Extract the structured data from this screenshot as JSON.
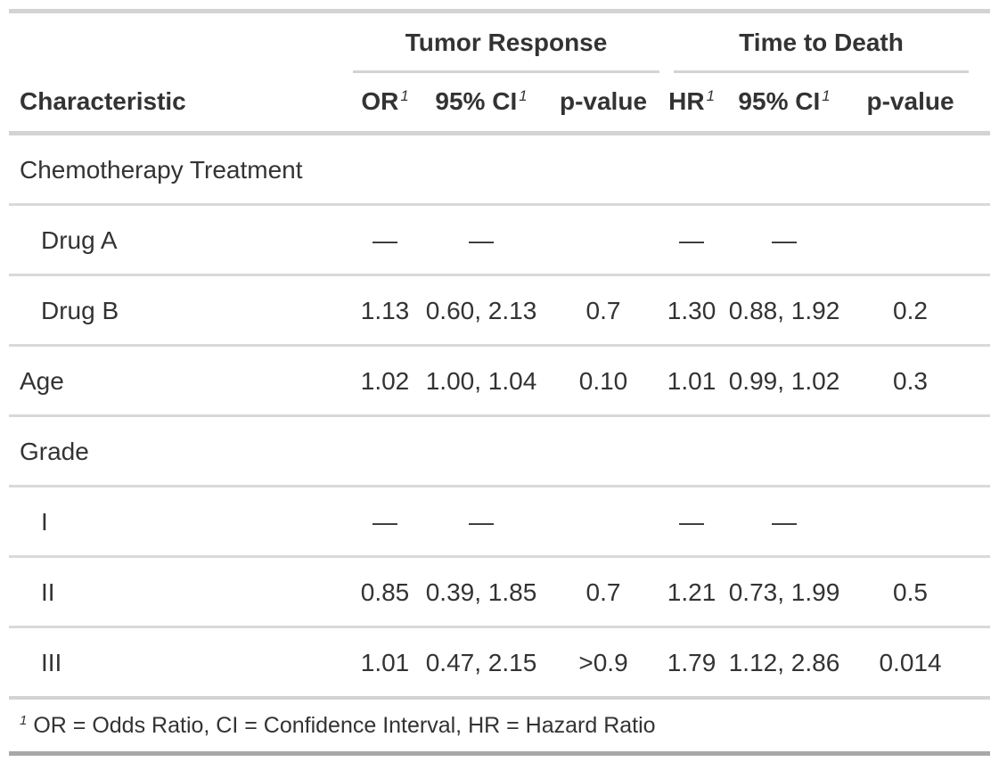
{
  "colors": {
    "text": "#333333",
    "border_light": "#D3D3D3",
    "border_dark": "#A8A8A8",
    "background": "#FFFFFF"
  },
  "chart_data": {
    "type": "table",
    "title": "",
    "spanners": [
      {
        "label": "Tumor Response",
        "covers": [
          "OR",
          "95% CI",
          "p-value"
        ]
      },
      {
        "label": "Time to Death",
        "covers": [
          "HR",
          "95% CI",
          "p-value"
        ]
      }
    ],
    "columns": [
      {
        "label": "Characteristic",
        "footnote_mark": ""
      },
      {
        "label": "OR",
        "footnote_mark": "1"
      },
      {
        "label": "95% CI",
        "footnote_mark": "1"
      },
      {
        "label": "p-value",
        "footnote_mark": ""
      },
      {
        "label": "HR",
        "footnote_mark": "1"
      },
      {
        "label": "95% CI",
        "footnote_mark": "1"
      },
      {
        "label": "p-value",
        "footnote_mark": ""
      }
    ],
    "rows": [
      {
        "label": "Chemotherapy Treatment",
        "indent": false,
        "cells": [
          "",
          "",
          "",
          "",
          "",
          ""
        ]
      },
      {
        "label": "Drug A",
        "indent": true,
        "cells": [
          "—",
          "—",
          "",
          "—",
          "—",
          ""
        ]
      },
      {
        "label": "Drug B",
        "indent": true,
        "cells": [
          "1.13",
          "0.60, 2.13",
          "0.7",
          "1.30",
          "0.88, 1.92",
          "0.2"
        ]
      },
      {
        "label": "Age",
        "indent": false,
        "cells": [
          "1.02",
          "1.00, 1.04",
          "0.10",
          "1.01",
          "0.99, 1.02",
          "0.3"
        ]
      },
      {
        "label": "Grade",
        "indent": false,
        "cells": [
          "",
          "",
          "",
          "",
          "",
          ""
        ]
      },
      {
        "label": "I",
        "indent": true,
        "cells": [
          "—",
          "—",
          "",
          "—",
          "—",
          ""
        ]
      },
      {
        "label": "II",
        "indent": true,
        "cells": [
          "0.85",
          "0.39, 1.85",
          "0.7",
          "1.21",
          "0.73, 1.99",
          "0.5"
        ]
      },
      {
        "label": "III",
        "indent": true,
        "cells": [
          "1.01",
          "0.47, 2.15",
          ">0.9",
          "1.79",
          "1.12, 2.86",
          "0.014"
        ]
      }
    ],
    "footnote": {
      "marker": "1",
      "text": "OR = Odds Ratio, CI = Confidence Interval, HR = Hazard Ratio"
    }
  }
}
